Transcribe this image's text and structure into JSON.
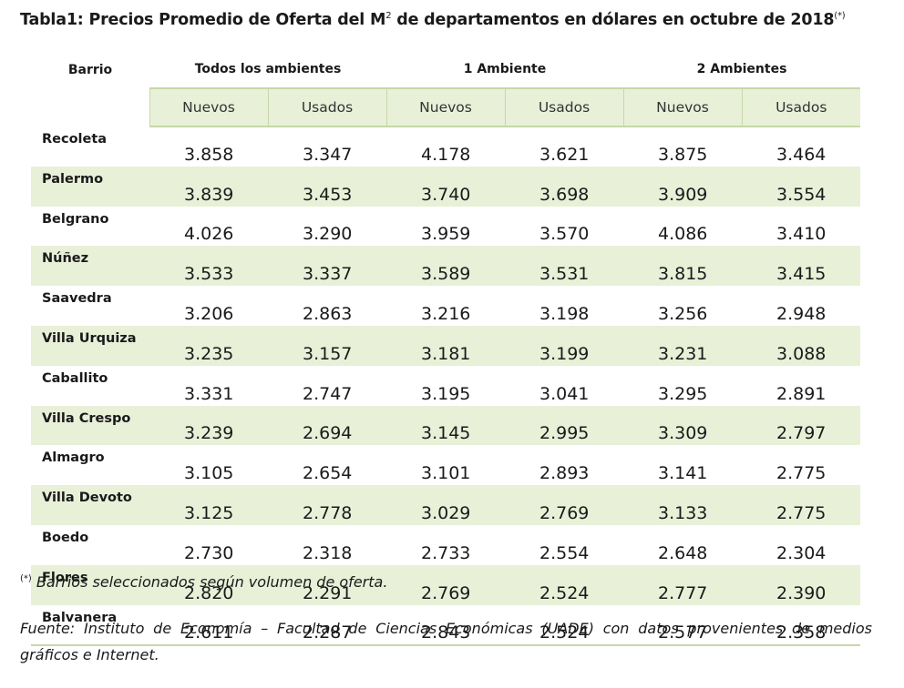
{
  "title": {
    "main": "Tabla1: Precios Promedio de Oferta del M",
    "exp": "2",
    "rest": " de departamentos en dólares en octubre de 2018",
    "mark": "(*)"
  },
  "table": {
    "barrio_header": "Barrio",
    "groups": [
      "Todos los ambientes",
      "1 Ambiente",
      "2 Ambientes"
    ],
    "subheaders": [
      "Nuevos",
      "Usados",
      "Nuevos",
      "Usados",
      "Nuevos",
      "Usados"
    ],
    "rows": [
      {
        "barrio": "Recoleta",
        "values": [
          "3.858",
          "3.347",
          "4.178",
          "3.621",
          "3.875",
          "3.464"
        ]
      },
      {
        "barrio": "Palermo",
        "values": [
          "3.839",
          "3.453",
          "3.740",
          "3.698",
          "3.909",
          "3.554"
        ]
      },
      {
        "barrio": "Belgrano",
        "values": [
          "4.026",
          "3.290",
          "3.959",
          "3.570",
          "4.086",
          "3.410"
        ]
      },
      {
        "barrio": "Núñez",
        "values": [
          "3.533",
          "3.337",
          "3.589",
          "3.531",
          "3.815",
          "3.415"
        ]
      },
      {
        "barrio": "Saavedra",
        "values": [
          "3.206",
          "2.863",
          "3.216",
          "3.198",
          "3.256",
          "2.948"
        ]
      },
      {
        "barrio": "Villa Urquiza",
        "values": [
          "3.235",
          "3.157",
          "3.181",
          "3.199",
          "3.231",
          "3.088"
        ]
      },
      {
        "barrio": "Caballito",
        "values": [
          "3.331",
          "2.747",
          "3.195",
          "3.041",
          "3.295",
          "2.891"
        ]
      },
      {
        "barrio": "Villa Crespo",
        "values": [
          "3.239",
          "2.694",
          "3.145",
          "2.995",
          "3.309",
          "2.797"
        ]
      },
      {
        "barrio": "Almagro",
        "values": [
          "3.105",
          "2.654",
          "3.101",
          "2.893",
          "3.141",
          "2.775"
        ]
      },
      {
        "barrio": "Villa Devoto",
        "values": [
          "3.125",
          "2.778",
          "3.029",
          "2.769",
          "3.133",
          "2.775"
        ]
      },
      {
        "barrio": "Boedo",
        "values": [
          "2.730",
          "2.318",
          "2.733",
          "2.554",
          "2.648",
          "2.304"
        ]
      },
      {
        "barrio": "Flores",
        "values": [
          "2.820",
          "2.291",
          "2.769",
          "2.524",
          "2.777",
          "2.390"
        ]
      },
      {
        "barrio": "Balvanera",
        "values": [
          "2.611",
          "2.287",
          "2.843",
          "2.524",
          "2.577",
          "2.358"
        ]
      }
    ]
  },
  "note": {
    "mark": "(*)",
    "text": " Barrios seleccionados según volumen de oferta."
  },
  "source": "Fuente: Instituto de Economía – Facultad de Ciencias Económicas (UADE) con datos provenientes de medios gráficos e Internet."
}
